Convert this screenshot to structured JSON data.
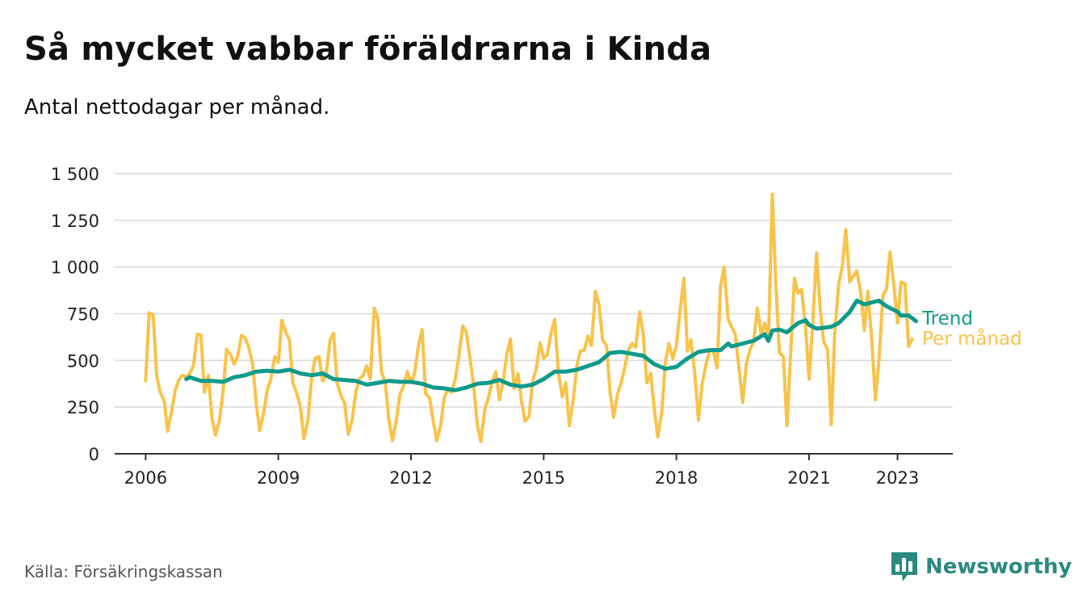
{
  "title": "Så mycket vabbar föräldrarna i Kinda",
  "subtitle": "Antal nettodagar per månad.",
  "source": "Källa: Försäkringskassan",
  "brand": {
    "name": "Newsworthy",
    "icon": "bar-chart-speech-bubble-icon",
    "color": "#2b8a7f"
  },
  "chart_data": {
    "type": "line",
    "ylim": [
      0,
      1500
    ],
    "yticks": [
      0,
      250,
      500,
      750,
      1000,
      1250,
      1500
    ],
    "ytick_labels": [
      "0",
      "250",
      "500",
      "750",
      "1 000",
      "1 250",
      "1 500"
    ],
    "xlim": [
      2005.3,
      2024.25
    ],
    "xticks": [
      2006,
      2009,
      2012,
      2015,
      2018,
      2021,
      2023
    ],
    "xtick_labels": [
      "2006",
      "2009",
      "2012",
      "2015",
      "2018",
      "2021",
      "2023"
    ],
    "grid": "horizontal",
    "series": [
      {
        "name": "Per månad",
        "color": "#f9c34a",
        "points": [
          [
            2006.0,
            390
          ],
          [
            2006.08,
            755
          ],
          [
            2006.17,
            740
          ],
          [
            2006.25,
            420
          ],
          [
            2006.33,
            330
          ],
          [
            2006.42,
            285
          ],
          [
            2006.5,
            120
          ],
          [
            2006.58,
            220
          ],
          [
            2006.67,
            340
          ],
          [
            2006.75,
            395
          ],
          [
            2006.83,
            420
          ],
          [
            2006.92,
            410
          ],
          [
            2007.0,
            430
          ],
          [
            2007.08,
            470
          ],
          [
            2007.17,
            640
          ],
          [
            2007.25,
            635
          ],
          [
            2007.33,
            330
          ],
          [
            2007.42,
            420
          ],
          [
            2007.5,
            190
          ],
          [
            2007.58,
            100
          ],
          [
            2007.67,
            180
          ],
          [
            2007.75,
            330
          ],
          [
            2007.83,
            560
          ],
          [
            2007.92,
            530
          ],
          [
            2008.0,
            480
          ],
          [
            2008.08,
            520
          ],
          [
            2008.17,
            635
          ],
          [
            2008.25,
            620
          ],
          [
            2008.33,
            570
          ],
          [
            2008.42,
            480
          ],
          [
            2008.5,
            270
          ],
          [
            2008.58,
            125
          ],
          [
            2008.67,
            220
          ],
          [
            2008.75,
            340
          ],
          [
            2008.83,
            400
          ],
          [
            2008.92,
            520
          ],
          [
            2009.0,
            490
          ],
          [
            2009.08,
            715
          ],
          [
            2009.17,
            650
          ],
          [
            2009.25,
            610
          ],
          [
            2009.33,
            380
          ],
          [
            2009.42,
            320
          ],
          [
            2009.5,
            250
          ],
          [
            2009.58,
            80
          ],
          [
            2009.67,
            180
          ],
          [
            2009.75,
            400
          ],
          [
            2009.83,
            510
          ],
          [
            2009.92,
            520
          ],
          [
            2010.0,
            390
          ],
          [
            2010.08,
            420
          ],
          [
            2010.17,
            610
          ],
          [
            2010.25,
            645
          ],
          [
            2010.33,
            380
          ],
          [
            2010.42,
            310
          ],
          [
            2010.5,
            270
          ],
          [
            2010.58,
            105
          ],
          [
            2010.67,
            180
          ],
          [
            2010.75,
            330
          ],
          [
            2010.83,
            400
          ],
          [
            2010.92,
            420
          ],
          [
            2011.0,
            470
          ],
          [
            2011.08,
            400
          ],
          [
            2011.17,
            780
          ],
          [
            2011.25,
            720
          ],
          [
            2011.33,
            440
          ],
          [
            2011.42,
            380
          ],
          [
            2011.5,
            180
          ],
          [
            2011.58,
            70
          ],
          [
            2011.67,
            180
          ],
          [
            2011.75,
            320
          ],
          [
            2011.83,
            360
          ],
          [
            2011.92,
            440
          ],
          [
            2012.0,
            380
          ],
          [
            2012.08,
            430
          ],
          [
            2012.17,
            580
          ],
          [
            2012.25,
            665
          ],
          [
            2012.33,
            320
          ],
          [
            2012.42,
            300
          ],
          [
            2012.5,
            180
          ],
          [
            2012.58,
            70
          ],
          [
            2012.67,
            150
          ],
          [
            2012.75,
            300
          ],
          [
            2012.83,
            345
          ],
          [
            2012.92,
            330
          ],
          [
            2013.0,
            400
          ],
          [
            2013.08,
            520
          ],
          [
            2013.17,
            685
          ],
          [
            2013.25,
            650
          ],
          [
            2013.33,
            520
          ],
          [
            2013.42,
            360
          ],
          [
            2013.5,
            150
          ],
          [
            2013.58,
            65
          ],
          [
            2013.67,
            240
          ],
          [
            2013.75,
            300
          ],
          [
            2013.83,
            380
          ],
          [
            2013.92,
            440
          ],
          [
            2014.0,
            290
          ],
          [
            2014.08,
            380
          ],
          [
            2014.17,
            540
          ],
          [
            2014.25,
            615
          ],
          [
            2014.33,
            350
          ],
          [
            2014.42,
            430
          ],
          [
            2014.5,
            280
          ],
          [
            2014.58,
            175
          ],
          [
            2014.67,
            200
          ],
          [
            2014.75,
            390
          ],
          [
            2014.83,
            450
          ],
          [
            2014.92,
            595
          ],
          [
            2015.0,
            510
          ],
          [
            2015.08,
            530
          ],
          [
            2015.17,
            650
          ],
          [
            2015.25,
            720
          ],
          [
            2015.33,
            440
          ],
          [
            2015.42,
            305
          ],
          [
            2015.5,
            380
          ],
          [
            2015.58,
            150
          ],
          [
            2015.67,
            290
          ],
          [
            2015.75,
            470
          ],
          [
            2015.83,
            550
          ],
          [
            2015.92,
            555
          ],
          [
            2016.0,
            630
          ],
          [
            2016.08,
            580
          ],
          [
            2016.17,
            870
          ],
          [
            2016.25,
            800
          ],
          [
            2016.33,
            610
          ],
          [
            2016.42,
            580
          ],
          [
            2016.5,
            330
          ],
          [
            2016.58,
            195
          ],
          [
            2016.67,
            320
          ],
          [
            2016.75,
            380
          ],
          [
            2016.83,
            460
          ],
          [
            2016.92,
            560
          ],
          [
            2017.0,
            590
          ],
          [
            2017.08,
            570
          ],
          [
            2017.17,
            760
          ],
          [
            2017.25,
            640
          ],
          [
            2017.33,
            380
          ],
          [
            2017.42,
            430
          ],
          [
            2017.5,
            240
          ],
          [
            2017.58,
            90
          ],
          [
            2017.67,
            220
          ],
          [
            2017.75,
            490
          ],
          [
            2017.83,
            590
          ],
          [
            2017.92,
            510
          ],
          [
            2018.0,
            580
          ],
          [
            2018.08,
            760
          ],
          [
            2018.17,
            940
          ],
          [
            2018.25,
            550
          ],
          [
            2018.33,
            610
          ],
          [
            2018.42,
            420
          ],
          [
            2018.5,
            180
          ],
          [
            2018.58,
            370
          ],
          [
            2018.67,
            480
          ],
          [
            2018.75,
            550
          ],
          [
            2018.83,
            560
          ],
          [
            2018.92,
            460
          ],
          [
            2019.0,
            900
          ],
          [
            2019.08,
            1000
          ],
          [
            2019.17,
            720
          ],
          [
            2019.25,
            680
          ],
          [
            2019.33,
            640
          ],
          [
            2019.42,
            450
          ],
          [
            2019.5,
            275
          ],
          [
            2019.58,
            480
          ],
          [
            2019.67,
            560
          ],
          [
            2019.75,
            600
          ],
          [
            2019.83,
            780
          ],
          [
            2019.92,
            640
          ],
          [
            2020.0,
            700
          ],
          [
            2020.08,
            600
          ],
          [
            2020.17,
            1390
          ],
          [
            2020.25,
            900
          ],
          [
            2020.33,
            540
          ],
          [
            2020.42,
            520
          ],
          [
            2020.5,
            150
          ],
          [
            2020.58,
            520
          ],
          [
            2020.67,
            940
          ],
          [
            2020.75,
            860
          ],
          [
            2020.83,
            880
          ],
          [
            2020.92,
            680
          ],
          [
            2021.0,
            400
          ],
          [
            2021.08,
            690
          ],
          [
            2021.17,
            1075
          ],
          [
            2021.25,
            780
          ],
          [
            2021.33,
            600
          ],
          [
            2021.42,
            560
          ],
          [
            2021.5,
            155
          ],
          [
            2021.58,
            640
          ],
          [
            2021.67,
            910
          ],
          [
            2021.75,
            1000
          ],
          [
            2021.83,
            1200
          ],
          [
            2021.92,
            920
          ],
          [
            2022.0,
            950
          ],
          [
            2022.08,
            980
          ],
          [
            2022.17,
            860
          ],
          [
            2022.25,
            660
          ],
          [
            2022.33,
            870
          ],
          [
            2022.42,
            600
          ],
          [
            2022.5,
            290
          ],
          [
            2022.58,
            500
          ],
          [
            2022.67,
            850
          ],
          [
            2022.75,
            880
          ],
          [
            2022.83,
            1080
          ],
          [
            2022.92,
            900
          ],
          [
            2023.0,
            700
          ],
          [
            2023.08,
            920
          ],
          [
            2023.17,
            910
          ],
          [
            2023.25,
            575
          ],
          [
            2023.33,
            615
          ]
        ]
      },
      {
        "name": "Trend",
        "color": "#0f9a8a",
        "points": [
          [
            2006.92,
            400
          ],
          [
            2007.0,
            410
          ],
          [
            2007.25,
            390
          ],
          [
            2007.5,
            390
          ],
          [
            2007.75,
            385
          ],
          [
            2008.0,
            410
          ],
          [
            2008.25,
            420
          ],
          [
            2008.5,
            440
          ],
          [
            2008.75,
            445
          ],
          [
            2009.0,
            440
          ],
          [
            2009.25,
            450
          ],
          [
            2009.5,
            430
          ],
          [
            2009.75,
            420
          ],
          [
            2010.0,
            430
          ],
          [
            2010.25,
            400
          ],
          [
            2010.5,
            395
          ],
          [
            2010.75,
            390
          ],
          [
            2011.0,
            370
          ],
          [
            2011.25,
            380
          ],
          [
            2011.5,
            390
          ],
          [
            2011.75,
            385
          ],
          [
            2012.0,
            385
          ],
          [
            2012.25,
            375
          ],
          [
            2012.5,
            355
          ],
          [
            2012.75,
            350
          ],
          [
            2013.0,
            340
          ],
          [
            2013.25,
            355
          ],
          [
            2013.5,
            375
          ],
          [
            2013.75,
            380
          ],
          [
            2014.0,
            395
          ],
          [
            2014.25,
            370
          ],
          [
            2014.5,
            360
          ],
          [
            2014.75,
            370
          ],
          [
            2015.0,
            400
          ],
          [
            2015.25,
            440
          ],
          [
            2015.5,
            440
          ],
          [
            2015.75,
            450
          ],
          [
            2016.0,
            470
          ],
          [
            2016.25,
            490
          ],
          [
            2016.5,
            540
          ],
          [
            2016.75,
            545
          ],
          [
            2017.0,
            535
          ],
          [
            2017.25,
            525
          ],
          [
            2017.5,
            480
          ],
          [
            2017.75,
            455
          ],
          [
            2018.0,
            465
          ],
          [
            2018.25,
            510
          ],
          [
            2018.5,
            545
          ],
          [
            2018.75,
            555
          ],
          [
            2019.0,
            555
          ],
          [
            2019.17,
            590
          ],
          [
            2019.25,
            575
          ],
          [
            2019.5,
            590
          ],
          [
            2019.75,
            605
          ],
          [
            2019.92,
            630
          ],
          [
            2020.0,
            640
          ],
          [
            2020.08,
            605
          ],
          [
            2020.17,
            660
          ],
          [
            2020.33,
            665
          ],
          [
            2020.5,
            650
          ],
          [
            2020.75,
            700
          ],
          [
            2020.92,
            715
          ],
          [
            2021.0,
            690
          ],
          [
            2021.17,
            670
          ],
          [
            2021.33,
            675
          ],
          [
            2021.5,
            680
          ],
          [
            2021.67,
            700
          ],
          [
            2021.92,
            760
          ],
          [
            2022.08,
            820
          ],
          [
            2022.25,
            800
          ],
          [
            2022.42,
            810
          ],
          [
            2022.58,
            820
          ],
          [
            2022.75,
            790
          ],
          [
            2022.92,
            770
          ],
          [
            2023.0,
            760
          ],
          [
            2023.08,
            740
          ],
          [
            2023.25,
            740
          ],
          [
            2023.42,
            710
          ]
        ]
      }
    ],
    "legend_placement": "end-of-line labels, right",
    "axis_color": "#333333",
    "grid_color": "#d9d9d9"
  }
}
